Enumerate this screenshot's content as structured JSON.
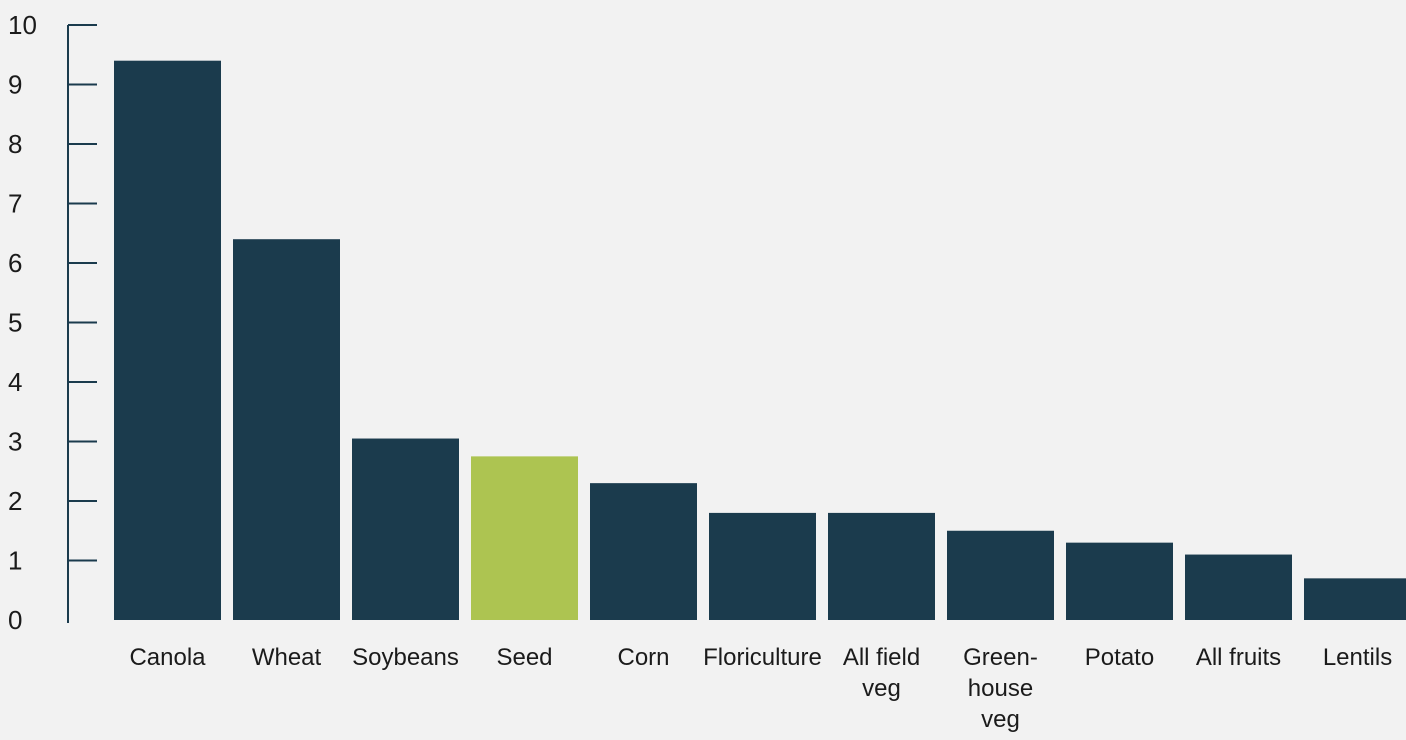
{
  "chart_data": {
    "type": "bar",
    "categories": [
      "Canola",
      "Wheat",
      "Soybeans",
      "Seed",
      "Corn",
      "Floriculture",
      "All field veg",
      "Green-house veg",
      "Potato",
      "All fruits",
      "Lentils"
    ],
    "category_label_lines": [
      [
        "Canola"
      ],
      [
        "Wheat"
      ],
      [
        "Soybeans"
      ],
      [
        "Seed"
      ],
      [
        "Corn"
      ],
      [
        "Floriculture"
      ],
      [
        "All field",
        "veg"
      ],
      [
        "Green-",
        "house",
        "veg"
      ],
      [
        "Potato"
      ],
      [
        "All fruits"
      ],
      [
        "Lentils"
      ]
    ],
    "values": [
      9.4,
      6.4,
      3.05,
      2.75,
      2.3,
      1.8,
      1.8,
      1.5,
      1.3,
      1.1,
      0.7
    ],
    "ylim": [
      0,
      10
    ],
    "yticks": [
      0,
      1,
      2,
      3,
      4,
      5,
      6,
      7,
      8,
      9,
      10
    ],
    "highlight_index": 3,
    "title": "",
    "xlabel": "",
    "ylabel": "",
    "grid": false,
    "colors": {
      "bar": "#1b3b4d",
      "highlight": "#adc451",
      "axis": "#1b3b4d",
      "background": "#f2f2f2",
      "text": "#1b1b1b"
    }
  }
}
